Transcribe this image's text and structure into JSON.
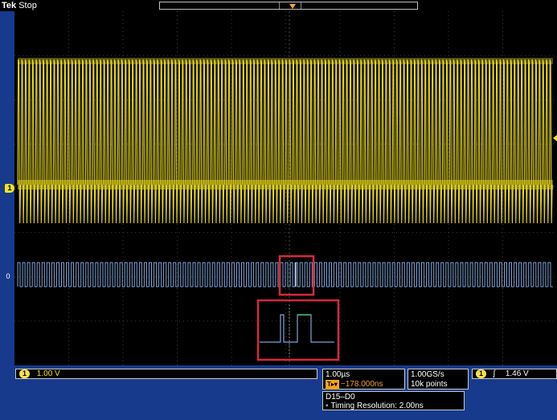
{
  "status": {
    "brand": "Tek",
    "state": "Stop"
  },
  "trigger_marker": {
    "label": "T"
  },
  "channel1": {
    "marker": "1",
    "scale": "1.00 V",
    "color": "#f4e421"
  },
  "digital": {
    "marker": "0",
    "color": "#7ea4d8",
    "group": "D15–D0",
    "timing_resolution": "Timing Resolution: 2.00ns"
  },
  "timebase": {
    "scale": "1.00µs",
    "position": "−178.000ns"
  },
  "acquisition": {
    "sample_rate": "1.00GS/s",
    "record_length": "10k points"
  },
  "trigger": {
    "source": "1",
    "slope": "rising",
    "level": "1.46 V"
  },
  "highlight_color": "#d8283e",
  "zoom_glitch_color": "#39c06a"
}
